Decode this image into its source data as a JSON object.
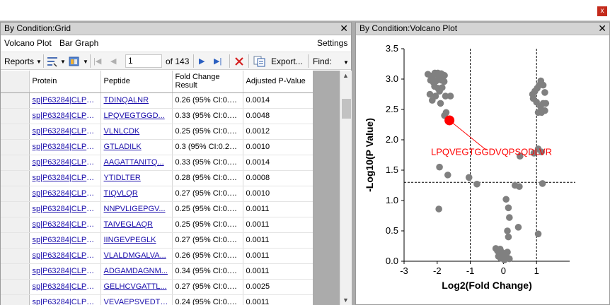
{
  "close_label": "x",
  "grid_panel": {
    "title": "By Condition:Grid",
    "close": "✕",
    "menu": {
      "volcano": "Volcano Plot",
      "bar": "Bar Graph",
      "settings": "Settings"
    },
    "toolbar": {
      "reports": "Reports",
      "page": "1",
      "of": "of 143",
      "export": "Export...",
      "find": "Find:"
    },
    "columns": [
      "Protein",
      "Peptide",
      "Fold Change Result",
      "Adjusted P-Value"
    ],
    "rows": [
      [
        "sp|P63284|CLPB...",
        "TDINQALNR",
        "0.26 (95% CI:0.1...",
        "0.0014"
      ],
      [
        "sp|P63284|CLPB...",
        "LPQVEGTGGD...",
        "0.33 (95% CI:0.2...",
        "0.0048"
      ],
      [
        "sp|P63284|CLPB...",
        "VLNLCDK",
        "0.25 (95% CI:0.1...",
        "0.0012"
      ],
      [
        "sp|P63284|CLPB...",
        "GTLADILK",
        "0.3 (95% CI:0.24 ...",
        "0.0010"
      ],
      [
        "sp|P63284|CLPB...",
        "AAGATTANITQ...",
        "0.33 (95% CI:0.2...",
        "0.0014"
      ],
      [
        "sp|P63284|CLPB...",
        "YTIDLTER",
        "0.28 (95% CI:0.2...",
        "0.0008"
      ],
      [
        "sp|P63284|CLPB...",
        "TIQVLQR",
        "0.27 (95% CI:0.2...",
        "0.0010"
      ],
      [
        "sp|P63284|CLPB...",
        "NNPVLIGEPGV...",
        "0.25 (95% CI:0.1...",
        "0.0011"
      ],
      [
        "sp|P63284|CLPB...",
        "TAIVEGLAQR",
        "0.25 (95% CI:0.1...",
        "0.0011"
      ],
      [
        "sp|P63284|CLPB...",
        "IINGEVPEGLK",
        "0.27 (95% CI:0.2 ...",
        "0.0011"
      ],
      [
        "sp|P63284|CLPB...",
        "VLALDMGALVA...",
        "0.26 (95% CI:0.1...",
        "0.0011"
      ],
      [
        "sp|P63284|CLPB...",
        "ADGAMDAGNM...",
        "0.34 (95% CI:0.2...",
        "0.0011"
      ],
      [
        "sp|P63284|CLPB...",
        "GELHCVGATTL...",
        "0.27 (95% CI:0.1...",
        "0.0025"
      ],
      [
        "sp|P63284|CLPB...",
        "VEVAEPSVEDTI...",
        "0.24 (95% CI:0.1...",
        "0.0011"
      ]
    ]
  },
  "plot_panel": {
    "title": "By Condition:Volcano Plot",
    "close": "✕"
  },
  "chart_data": {
    "type": "scatter",
    "xlabel": "Log2(Fold Change)",
    "ylabel": "-Log10(P Value)",
    "xlim": [
      -3,
      2
    ],
    "ylim": [
      0,
      3.5
    ],
    "xticks": [
      "-3",
      "-2",
      "-1",
      "0",
      "1"
    ],
    "yticks": [
      "0.0",
      "0.5",
      "1.0",
      "1.5",
      "2.0",
      "2.5",
      "3.0",
      "3.5"
    ],
    "thresholds": {
      "x": [
        -1,
        1
      ],
      "y": 1.3
    },
    "point_color": "#808080",
    "highlight_color": "#ff0000",
    "highlight": {
      "x": -1.63,
      "y": 2.32,
      "label": "LPQVEGTGGDVQPSQDLVR"
    },
    "points": [
      [
        -2.28,
        3.08
      ],
      [
        -2.18,
        3.05
      ],
      [
        -2.12,
        3.06
      ],
      [
        -2.07,
        3.1
      ],
      [
        -2.02,
        3.08
      ],
      [
        -1.98,
        3.1
      ],
      [
        -1.93,
        3.08
      ],
      [
        -1.88,
        3.09
      ],
      [
        -1.83,
        3.07
      ],
      [
        -1.78,
        3.06
      ],
      [
        -2.2,
        2.98
      ],
      [
        -2.12,
        2.95
      ],
      [
        -2.03,
        2.97
      ],
      [
        -1.95,
        3.0
      ],
      [
        -1.87,
        2.98
      ],
      [
        -1.79,
        2.96
      ],
      [
        -2.08,
        2.88
      ],
      [
        -1.98,
        2.85
      ],
      [
        -1.85,
        2.86
      ],
      [
        -2.22,
        2.75
      ],
      [
        -2.05,
        2.72
      ],
      [
        -1.93,
        2.8
      ],
      [
        -1.75,
        2.72
      ],
      [
        -1.6,
        2.72
      ],
      [
        -2.15,
        2.65
      ],
      [
        -1.9,
        2.6
      ],
      [
        -1.73,
        2.45
      ],
      [
        -1.78,
        2.4
      ],
      [
        -1.93,
        1.55
      ],
      [
        -1.68,
        1.42
      ],
      [
        -1.95,
        0.86
      ],
      [
        -1.04,
        1.38
      ],
      [
        -0.8,
        1.27
      ],
      [
        0.35,
        1.25
      ],
      [
        0.48,
        1.23
      ],
      [
        0.08,
        1.02
      ],
      [
        0.15,
        0.88
      ],
      [
        0.18,
        0.72
      ],
      [
        0.45,
        0.56
      ],
      [
        0.12,
        0.5
      ],
      [
        0.15,
        0.4
      ],
      [
        -0.23,
        0.21
      ],
      [
        -0.18,
        0.17
      ],
      [
        -0.1,
        0.2
      ],
      [
        -0.05,
        0.15
      ],
      [
        0.0,
        0.13
      ],
      [
        0.05,
        0.1
      ],
      [
        0.1,
        0.07
      ],
      [
        -0.15,
        0.08
      ],
      [
        -0.08,
        0.05
      ],
      [
        0.18,
        0.04
      ],
      [
        0.03,
        0.02
      ],
      [
        -0.12,
        0.12
      ],
      [
        0.12,
        0.15
      ],
      [
        0.5,
        1.73
      ],
      [
        0.92,
        1.78
      ],
      [
        1.05,
        1.85
      ],
      [
        1.15,
        1.8
      ],
      [
        1.18,
        1.28
      ],
      [
        1.05,
        0.45
      ],
      [
        0.88,
        2.75
      ],
      [
        0.95,
        2.8
      ],
      [
        1.02,
        2.85
      ],
      [
        1.08,
        2.9
      ],
      [
        1.13,
        2.97
      ],
      [
        1.2,
        2.9
      ],
      [
        1.25,
        2.78
      ],
      [
        0.9,
        2.68
      ],
      [
        1.0,
        2.62
      ],
      [
        1.12,
        2.55
      ],
      [
        1.2,
        2.6
      ],
      [
        1.28,
        2.6
      ],
      [
        1.05,
        2.45
      ],
      [
        1.15,
        2.45
      ],
      [
        1.25,
        2.48
      ]
    ]
  }
}
